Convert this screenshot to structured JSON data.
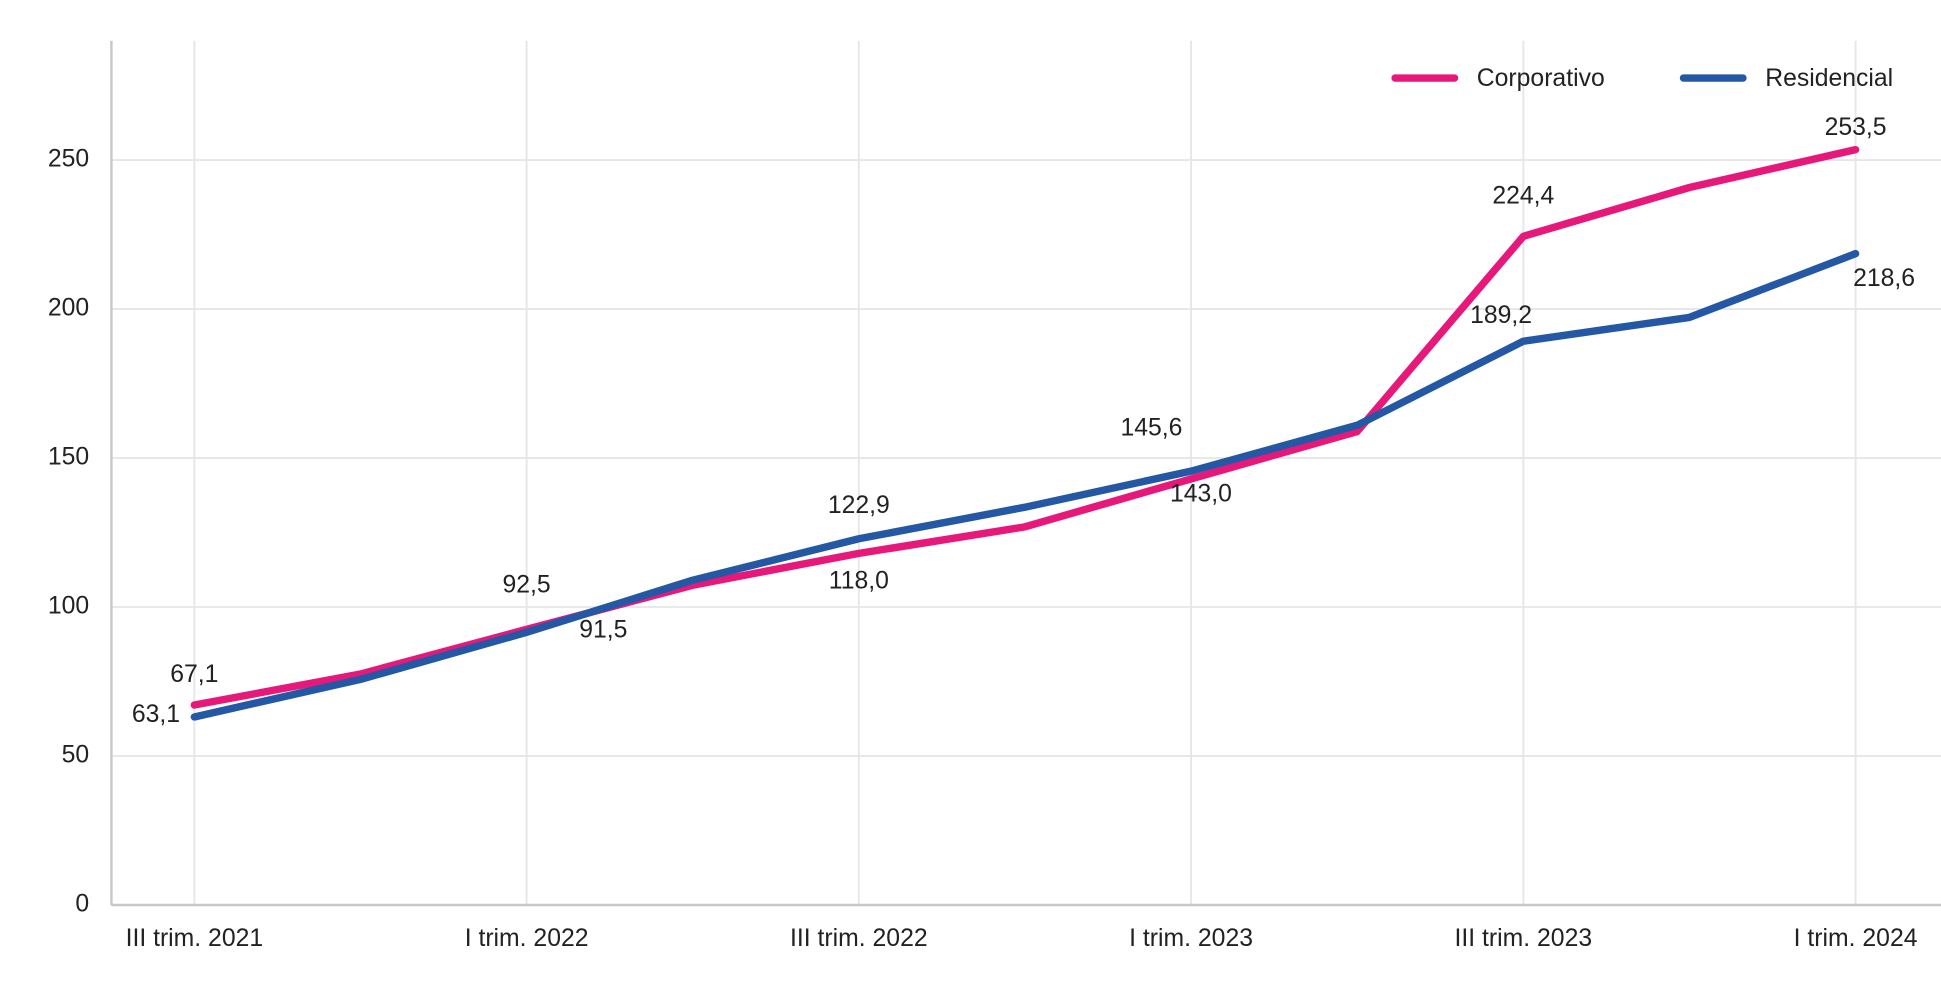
{
  "chart_data": {
    "type": "line",
    "categories": [
      "III trim. 2021",
      null,
      "I trim. 2022",
      null,
      "III trim. 2022",
      null,
      "I trim. 2023",
      null,
      "III trim. 2023",
      null,
      "I trim. 2024"
    ],
    "series": [
      {
        "name": "Corporativo",
        "color": "#e6197a",
        "values": [
          67.1,
          77.5,
          92.5,
          107.3,
          118.0,
          126.9,
          143.0,
          158.9,
          224.4,
          240.8,
          253.5
        ],
        "value_labels": [
          "67,1",
          null,
          "92,5",
          null,
          "118,0",
          null,
          "143,0",
          null,
          "224,4",
          null,
          "253,5"
        ]
      },
      {
        "name": "Residencial",
        "color": "#2457a4",
        "values": [
          63.1,
          75.7,
          91.5,
          109.0,
          122.9,
          133.5,
          145.6,
          161.0,
          189.2,
          197.2,
          218.6
        ],
        "value_labels": [
          "63,1",
          null,
          "91,5",
          null,
          "122,9",
          null,
          "145,6",
          null,
          "189,2",
          null,
          "218,6"
        ]
      }
    ],
    "ylim": [
      0,
      290
    ],
    "yticks": [
      0,
      50,
      100,
      150,
      200,
      250
    ],
    "grid": true,
    "legend": "top-right"
  }
}
